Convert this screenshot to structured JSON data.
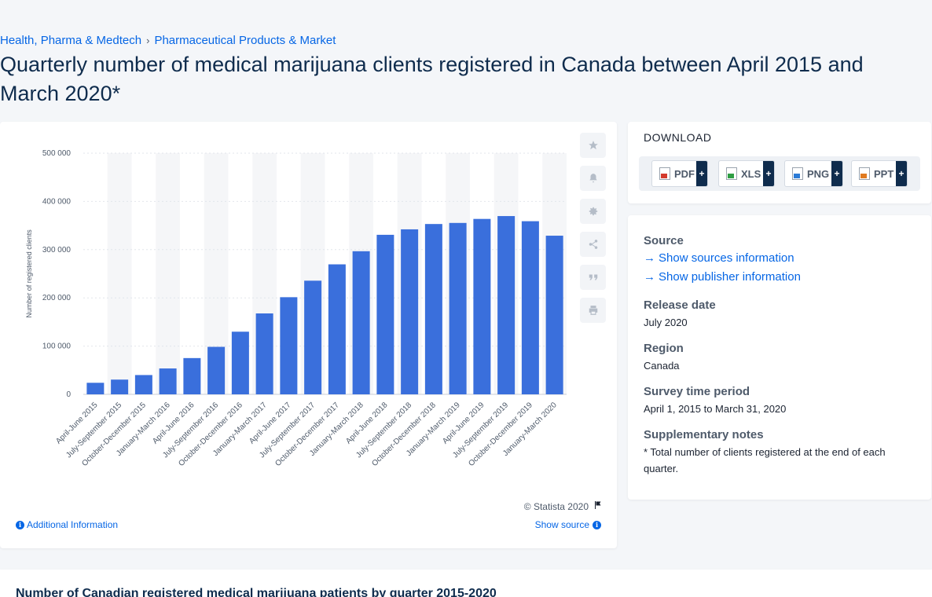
{
  "breadcrumb": {
    "items": [
      "Health, Pharma & Medtech",
      "Pharmaceutical Products & Market"
    ]
  },
  "title": "Quarterly number of medical marijuana clients registered in Canada between April 2015 and March 2020*",
  "colors": {
    "bar": "#3a6fdc",
    "accent": "#0666e5",
    "band": "#f5f6f8"
  },
  "chart_data": {
    "type": "bar",
    "categories": [
      "April-June 2015",
      "July-September 2015",
      "October-December 2015",
      "January-March 2016",
      "April-June 2016",
      "July-September 2016",
      "October-December 2016",
      "January-March 2017",
      "April-June 2017",
      "July-September 2017",
      "October-December 2017",
      "January-March 2018",
      "April-June 2018",
      "July-September 2018",
      "October-December 2018",
      "January-March 2019",
      "April-June 2019",
      "July-September 2019",
      "October-December 2019",
      "January-March 2020"
    ],
    "values": [
      23930,
      30537,
      40000,
      53649,
      75166,
      98460,
      129876,
      167754,
      201398,
      235621,
      269502,
      296702,
      330758,
      342103,
      353143,
      355369,
      363697,
      369614,
      358966,
      328932
    ],
    "ylabel": "Number of registered clients",
    "yticks": [
      "0",
      "100 000",
      "200 000",
      "300 000",
      "400 000",
      "500 000"
    ],
    "ylim": [
      0,
      500000
    ],
    "grid": true
  },
  "copyright": "© Statista 2020",
  "links": {
    "additional": "Additional Information",
    "show_source": "Show source"
  },
  "download": {
    "title": "DOWNLOAD",
    "buttons": [
      {
        "label": "PDF",
        "icon": "pdf-file-icon"
      },
      {
        "label": "XLS",
        "icon": "xls-file-icon"
      },
      {
        "label": "PNG",
        "icon": "png-file-icon"
      },
      {
        "label": "PPT",
        "icon": "ppt-file-icon"
      }
    ],
    "plus": "+"
  },
  "meta": {
    "source_head": "Source",
    "source_link": "Show sources information",
    "publisher_link": "Show publisher information",
    "release_head": "Release date",
    "release_val": "July 2020",
    "region_head": "Region",
    "region_val": "Canada",
    "period_head": "Survey time period",
    "period_val": "April 1, 2015 to March 31, 2020",
    "notes_head": "Supplementary notes",
    "notes_val": "* Total number of clients registered at the end of each quarter."
  },
  "bottom_title": "Number of Canadian registered medical marijuana patients by quarter 2015-2020"
}
